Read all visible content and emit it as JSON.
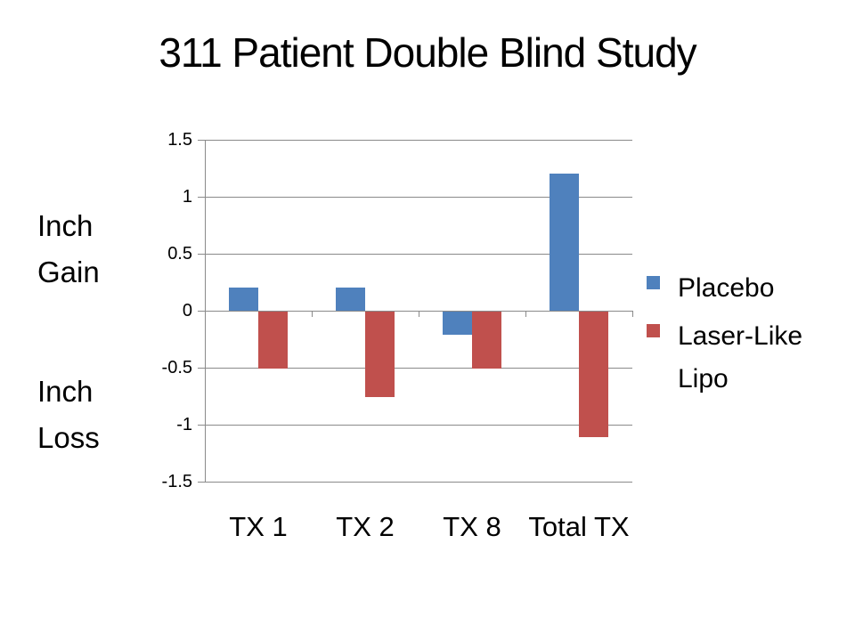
{
  "title": "311 Patient Double Blind Study",
  "side_labels": {
    "gain": "Inch Gain",
    "loss": "Inch Loss"
  },
  "legend": {
    "position": "right",
    "items": [
      {
        "label": "Placebo",
        "color": "#4F81BD"
      },
      {
        "label": "Laser-Like Lipo",
        "color": "#C0504D"
      }
    ]
  },
  "colors": {
    "placebo": "#4F81BD",
    "laser_like_lipo": "#C0504D",
    "gridline": "#8a8a8a",
    "text": "#000000",
    "background": "#ffffff"
  },
  "chart_data": {
    "type": "bar",
    "title": "311 Patient Double Blind Study",
    "categories": [
      "TX 1",
      "TX 2",
      "TX 8",
      "Total TX"
    ],
    "series": [
      {
        "name": "Placebo",
        "color": "#4F81BD",
        "values": [
          0.2,
          0.2,
          -0.2,
          1.2
        ]
      },
      {
        "name": "Laser-Like Lipo",
        "color": "#C0504D",
        "values": [
          -0.5,
          -0.75,
          -0.5,
          -1.1
        ]
      }
    ],
    "xlabel": "",
    "ylabel": "",
    "ylim": [
      -1.5,
      1.5
    ],
    "yticks": [
      1.5,
      1,
      0.5,
      0,
      -0.5,
      -1,
      -1.5
    ],
    "ytick_labels": [
      "1.5",
      "1",
      "0.5",
      "0",
      "-0.5",
      "-1",
      "-1.5"
    ],
    "grid": true,
    "legend_position": "right"
  }
}
